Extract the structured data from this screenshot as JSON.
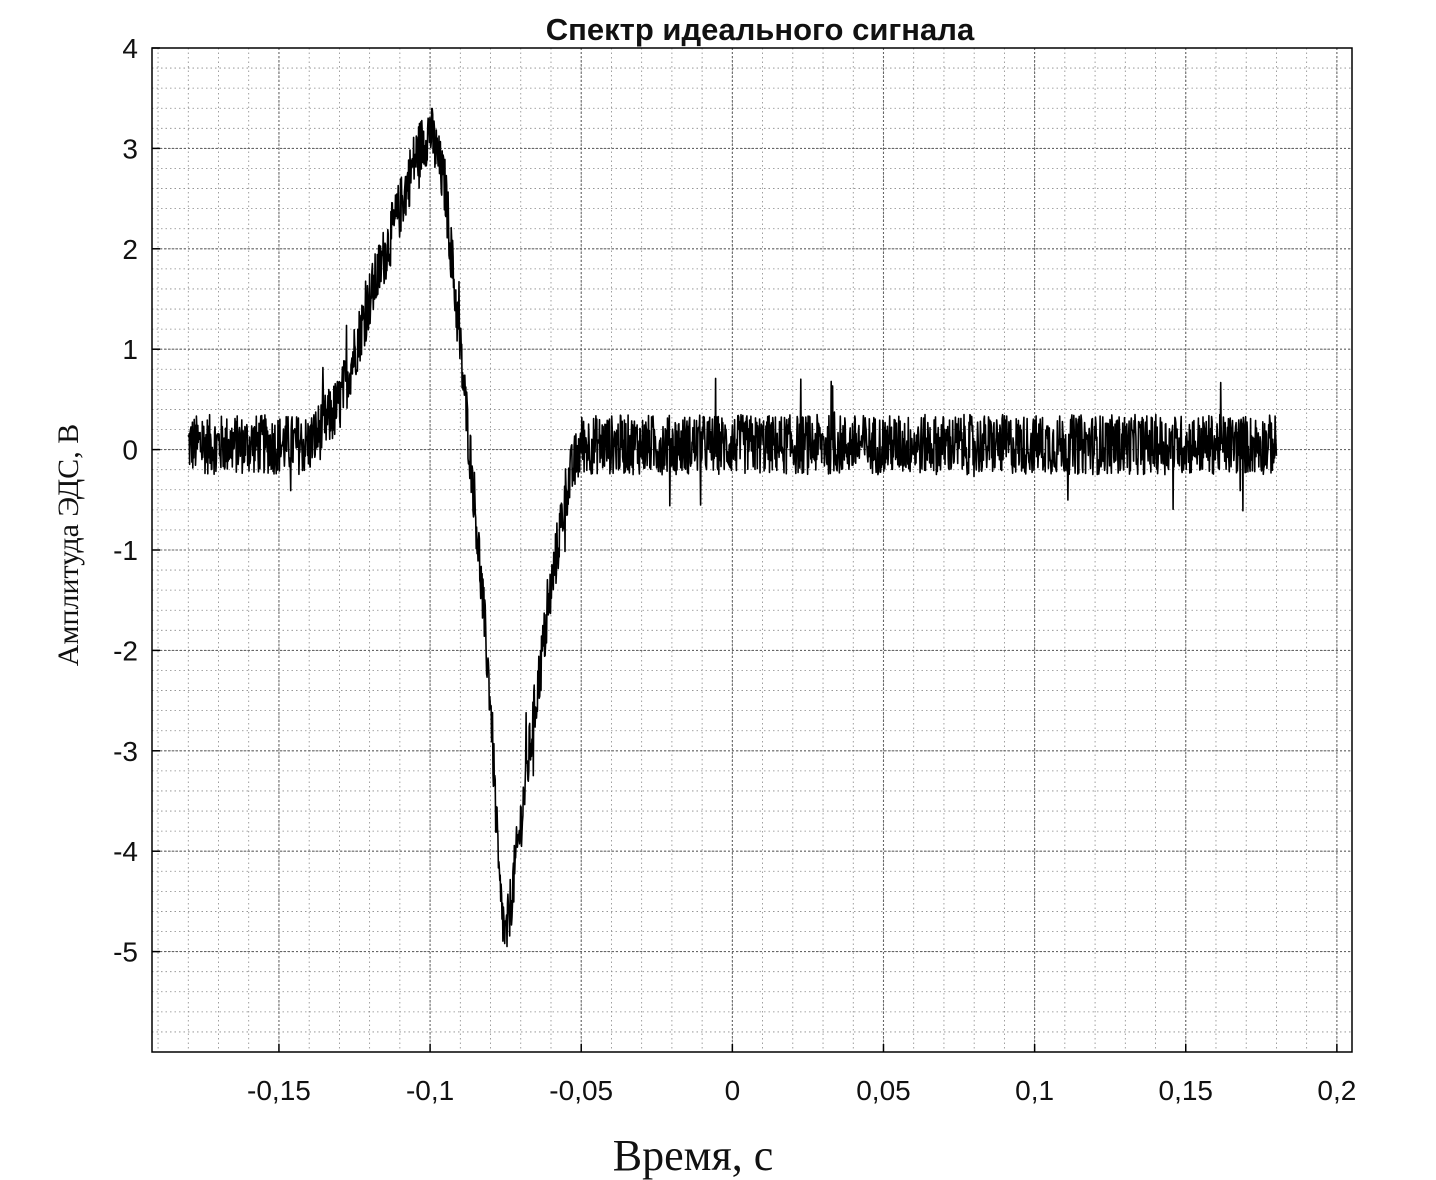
{
  "chart_data": {
    "type": "line",
    "title": "Спектр идеального сигнала",
    "xlabel": "Время, с",
    "ylabel": "Амплитуда ЭДС, В",
    "xlim": [
      -0.192,
      0.205
    ],
    "ylim": [
      -6,
      4
    ],
    "x_ticks": [
      {
        "value": -0.15,
        "label": "-0,15"
      },
      {
        "value": -0.1,
        "label": "-0,1"
      },
      {
        "value": -0.05,
        "label": "-0,05"
      },
      {
        "value": 0,
        "label": "0"
      },
      {
        "value": 0.05,
        "label": "0,05"
      },
      {
        "value": 0.1,
        "label": "0,1"
      },
      {
        "value": 0.15,
        "label": "0,15"
      },
      {
        "value": 0.2,
        "label": "0,2"
      }
    ],
    "y_ticks": [
      {
        "value": 4,
        "label": "4"
      },
      {
        "value": 3,
        "label": "3"
      },
      {
        "value": 2,
        "label": "2"
      },
      {
        "value": 1,
        "label": "1"
      },
      {
        "value": 0,
        "label": "0"
      },
      {
        "value": -1,
        "label": "-1"
      },
      {
        "value": -2,
        "label": "-2"
      },
      {
        "value": -3,
        "label": "-3"
      },
      {
        "value": -4,
        "label": "-4"
      },
      {
        "value": -5,
        "label": "-5"
      }
    ],
    "grid": true,
    "minor_grid": true,
    "line_color": "#000000",
    "series": [
      {
        "x": [
          -0.18,
          -0.14,
          -0.13,
          -0.12,
          -0.11,
          -0.105,
          -0.1,
          -0.095,
          -0.09,
          -0.085,
          -0.08,
          -0.077,
          -0.075,
          -0.072,
          -0.065,
          -0.06,
          -0.055,
          -0.05,
          0.0,
          0.05,
          0.1,
          0.15,
          0.18
        ],
        "y": [
          0.05,
          0.05,
          0.45,
          1.5,
          2.4,
          2.9,
          3.2,
          2.6,
          1.0,
          -0.6,
          -2.5,
          -4.4,
          -4.9,
          -4.2,
          -2.5,
          -1.4,
          -0.4,
          0.05,
          0.05,
          0.05,
          0.05,
          0.05,
          0.05
        ],
        "noise_amplitude": 0.3
      }
    ]
  }
}
